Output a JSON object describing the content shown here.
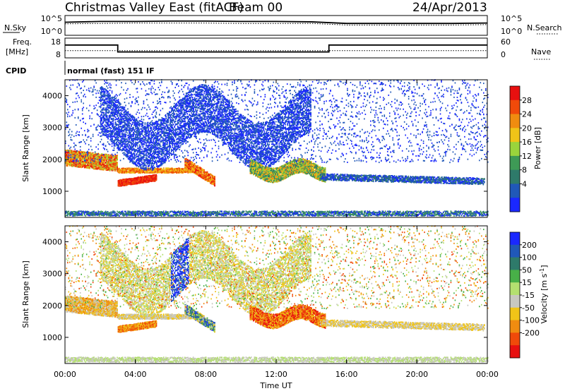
{
  "header": {
    "station": "Christmas Valley East (fitACF)",
    "beam": "Beam 00",
    "date": "24/Apr/2013"
  },
  "summary": {
    "nsky_label": "N.Sky",
    "nsearch_label": "N.Search",
    "noise_ticks": [
      "10^5",
      "10^0"
    ],
    "freq_label_1": "Freq.",
    "freq_label_2": "[MHz]",
    "freq_ticks": [
      "18",
      "8"
    ],
    "nave_label": "Nave",
    "nave_ticks": [
      "60",
      "0"
    ],
    "cpid_label": "CPID",
    "cpid_value": "normal (fast) 151 IF"
  },
  "colors": {
    "power_scale": [
      "#1a28ff",
      "#2058b8",
      "#2e7a6a",
      "#3e9a56",
      "#9ad43c",
      "#f0c418",
      "#f08c10",
      "#f04a0a",
      "#e81010"
    ],
    "velocity_scale": [
      "#1a28ff",
      "#2058b8",
      "#2e7a6a",
      "#48b048",
      "#b4e070",
      "#c8c8c0",
      "#f0c418",
      "#f08c10",
      "#f04a0a",
      "#e81010"
    ]
  },
  "chart_data": [
    {
      "type": "line",
      "panel": "noise",
      "x": [
        0,
        2,
        4,
        6,
        8,
        10,
        12,
        14,
        15,
        16,
        18,
        20,
        22,
        24
      ],
      "series": [
        {
          "name": "N.Sky",
          "values": [
            3.3,
            3.5,
            3.5,
            3.6,
            3.6,
            3.5,
            3.5,
            3.4,
            3.2,
            3.0,
            3.0,
            3.0,
            3.0,
            3.1
          ]
        },
        {
          "name": "N.Search",
          "values": [
            2.9,
            3.0,
            3.1,
            3.1,
            3.1,
            3.0,
            3.0,
            3.0,
            2.8,
            2.6,
            2.6,
            2.6,
            2.6,
            2.7
          ]
        }
      ],
      "ylabel": "N.Sky",
      "ytick_labels": [
        "10^5",
        "10^0"
      ]
    },
    {
      "type": "line",
      "panel": "frequency",
      "x": [
        0,
        3,
        3,
        15,
        15,
        24
      ],
      "series": [
        {
          "name": "Freq.",
          "values": [
            14.5,
            14.5,
            11.0,
            11.0,
            14.5,
            14.5
          ]
        },
        {
          "name": "Nave",
          "values": [
            22,
            22,
            22,
            22,
            22,
            22
          ]
        }
      ],
      "ylabel": "Freq. [MHz]",
      "ytick_labels": [
        "18",
        "8"
      ],
      "y2_tick_labels": [
        "60",
        "0"
      ]
    },
    {
      "type": "heatmap",
      "panel": "power",
      "xlabel": "",
      "ylabel": "Slant Range [km]",
      "xlim": [
        0,
        24
      ],
      "ylim": [
        180,
        4500
      ],
      "y_ticks": [
        1000,
        2000,
        3000,
        4000
      ],
      "colorbar_label": "Power [dB]",
      "colorbar_ticks": [
        4,
        8,
        12,
        16,
        20,
        24,
        28
      ],
      "colorbar_range": [
        0,
        32
      ]
    },
    {
      "type": "heatmap",
      "panel": "velocity",
      "xlabel": "Time UT",
      "ylabel": "Slant Range [km]",
      "xlim": [
        0,
        24
      ],
      "ylim": [
        180,
        4500
      ],
      "x_ticks": [
        0,
        4,
        8,
        12,
        16,
        20,
        24
      ],
      "x_tick_labels": [
        "00:00",
        "04:00",
        "08:00",
        "12:00",
        "16:00",
        "20:00",
        "00:00"
      ],
      "y_ticks": [
        1000,
        2000,
        3000,
        4000
      ],
      "colorbar_label": "Velocity [m s^-1]",
      "colorbar_ticks": [
        200,
        100,
        50,
        15,
        -15,
        -50,
        -100,
        -200
      ]
    }
  ]
}
